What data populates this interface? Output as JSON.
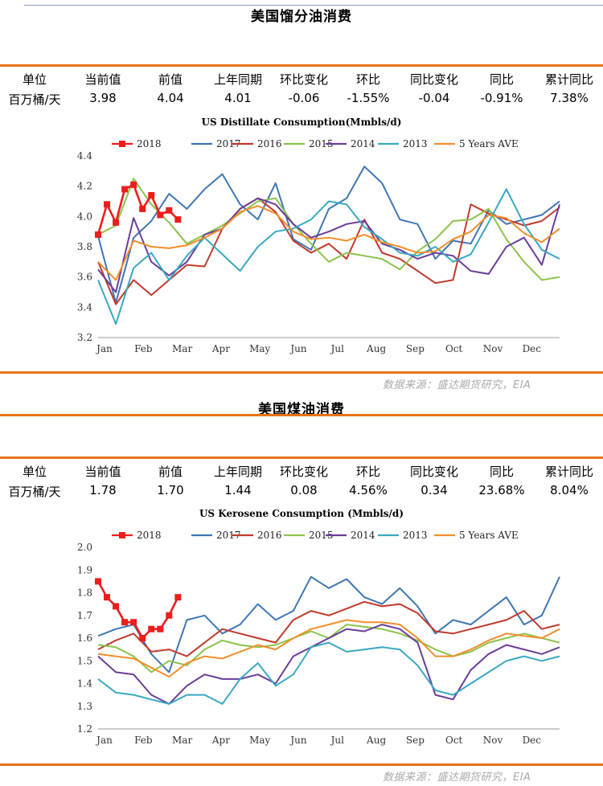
{
  "colors": {
    "accent": "#e8731a",
    "2018": "#ee1c1c",
    "2017": "#3f76b4",
    "2016": "#c0392b",
    "2015": "#8bc34a",
    "2014": "#6a3d9a",
    "2013": "#3aa8c1",
    "avg": "#f28e2b"
  },
  "table_headers": [
    "单位",
    "当前值",
    "前值",
    "上年同期",
    "环比变化",
    "环比",
    "同比变化",
    "同比",
    "累计同比"
  ],
  "sections": [
    {
      "title": "美国馏分油消费",
      "values": [
        "百万桶/天",
        "3.98",
        "4.04",
        "4.01",
        "-0.06",
        "-1.55%",
        "-0.04",
        "-0.91%",
        "7.38%"
      ],
      "source": "数据来源：盛达期货研究，EIA"
    },
    {
      "title": "美国煤油消费",
      "values": [
        "百万桶/天",
        "1.78",
        "1.70",
        "1.44",
        "0.08",
        "4.56%",
        "0.34",
        "23.68%",
        "8.04%"
      ],
      "source": "数据来源：盛达期货研究，EIA"
    }
  ],
  "chart_data": [
    {
      "type": "line",
      "title": "US Distillate Consumption(Mmbls/d)",
      "x_ticks": [
        "Jan",
        "Feb",
        "Mar",
        "Apr",
        "May",
        "Jun",
        "Jul",
        "Aug",
        "Sep",
        "Oct",
        "Nov",
        "Dec"
      ],
      "y_ticks": [
        3.2,
        3.4,
        3.6,
        3.8,
        4.0,
        4.2,
        4.4
      ],
      "ylim": [
        3.2,
        4.4
      ],
      "legend_position": "top",
      "series": [
        {
          "name": "2018",
          "key": "2018",
          "markers": true,
          "week": [
            1,
            2,
            3,
            4,
            5,
            6,
            7,
            8,
            9,
            10
          ],
          "values": [
            3.88,
            4.08,
            3.96,
            4.18,
            4.21,
            4.05,
            4.14,
            4.01,
            4.04,
            3.98
          ]
        },
        {
          "name": "2017",
          "key": "2017",
          "week": [
            1,
            3,
            5,
            7,
            9,
            11,
            13,
            15,
            17,
            19,
            21,
            23,
            25,
            27,
            29,
            31,
            33,
            35,
            37,
            39,
            41,
            43,
            45,
            47,
            49,
            51,
            53
          ],
          "values": [
            3.87,
            3.43,
            3.86,
            3.97,
            4.15,
            4.05,
            4.18,
            4.28,
            4.08,
            3.98,
            4.22,
            3.85,
            3.78,
            4.05,
            4.12,
            4.33,
            4.22,
            3.98,
            3.95,
            3.72,
            3.84,
            3.82,
            4.04,
            3.95,
            3.98,
            4.01,
            4.1
          ]
        },
        {
          "name": "2016",
          "key": "2016",
          "week": [
            1,
            3,
            5,
            7,
            9,
            11,
            13,
            15,
            17,
            19,
            21,
            23,
            25,
            27,
            29,
            31,
            33,
            35,
            37,
            39,
            41,
            43,
            45,
            47,
            49,
            51,
            53
          ],
          "values": [
            3.7,
            3.42,
            3.58,
            3.48,
            3.58,
            3.68,
            3.67,
            3.92,
            4.05,
            4.12,
            4.03,
            3.84,
            3.76,
            3.82,
            3.72,
            3.98,
            3.76,
            3.72,
            3.64,
            3.56,
            3.58,
            4.08,
            4.02,
            3.98,
            3.94,
            3.97,
            4.06
          ]
        },
        {
          "name": "2015",
          "key": "2015",
          "week": [
            1,
            3,
            5,
            7,
            9,
            11,
            13,
            15,
            17,
            19,
            21,
            23,
            25,
            27,
            29,
            31,
            33,
            35,
            37,
            39,
            41,
            43,
            45,
            47,
            49,
            51,
            53
          ],
          "values": [
            3.88,
            3.94,
            4.25,
            4.08,
            3.96,
            3.82,
            3.88,
            3.94,
            4.02,
            4.1,
            4.12,
            3.95,
            3.82,
            3.7,
            3.76,
            3.74,
            3.72,
            3.65,
            3.77,
            3.85,
            3.97,
            3.98,
            4.05,
            3.85,
            3.7,
            3.58,
            3.6
          ]
        },
        {
          "name": "2014",
          "key": "2014",
          "week": [
            1,
            3,
            5,
            7,
            9,
            11,
            13,
            15,
            17,
            19,
            21,
            23,
            25,
            27,
            29,
            31,
            33,
            35,
            37,
            39,
            41,
            43,
            45,
            47,
            49,
            51,
            53
          ],
          "values": [
            3.65,
            3.5,
            3.99,
            3.7,
            3.61,
            3.7,
            3.88,
            3.92,
            4.05,
            4.12,
            4.08,
            3.95,
            3.86,
            3.9,
            3.95,
            3.97,
            3.82,
            3.78,
            3.72,
            3.76,
            3.74,
            3.64,
            3.62,
            3.8,
            3.86,
            3.68,
            4.08
          ]
        },
        {
          "name": "2013",
          "key": "2013",
          "week": [
            1,
            3,
            5,
            7,
            9,
            11,
            13,
            15,
            17,
            19,
            21,
            23,
            25,
            27,
            29,
            31,
            33,
            35,
            37,
            39,
            41,
            43,
            45,
            47,
            49,
            51,
            53
          ],
          "values": [
            3.58,
            3.29,
            3.66,
            3.76,
            3.58,
            3.74,
            3.86,
            3.75,
            3.64,
            3.8,
            3.9,
            3.92,
            3.98,
            4.1,
            4.08,
            3.93,
            3.85,
            3.76,
            3.74,
            3.8,
            3.7,
            3.75,
            3.96,
            4.18,
            3.95,
            3.78,
            3.72
          ]
        },
        {
          "name": "5 Years AVE",
          "key": "avg",
          "week": [
            1,
            3,
            5,
            7,
            9,
            11,
            13,
            15,
            17,
            19,
            21,
            23,
            25,
            27,
            29,
            31,
            33,
            35,
            37,
            39,
            41,
            43,
            45,
            47,
            49,
            51,
            53
          ],
          "values": [
            3.7,
            3.58,
            3.84,
            3.8,
            3.79,
            3.81,
            3.86,
            3.92,
            4.03,
            4.07,
            4.02,
            3.9,
            3.85,
            3.86,
            3.84,
            3.88,
            3.83,
            3.8,
            3.76,
            3.77,
            3.85,
            3.9,
            4.01,
            3.99,
            3.89,
            3.83,
            3.92
          ]
        }
      ]
    },
    {
      "type": "line",
      "title": "US Kerosene Consumption (Mmbls/d)",
      "x_ticks": [
        "Jan",
        "Feb",
        "Mar",
        "Apr",
        "May",
        "Jun",
        "Jul",
        "Aug",
        "Sep",
        "Oct",
        "Nov",
        "Dec"
      ],
      "y_ticks": [
        1.2,
        1.3,
        1.4,
        1.5,
        1.6,
        1.7,
        1.8,
        1.9,
        2.0
      ],
      "ylim": [
        1.2,
        2.0
      ],
      "legend_position": "top",
      "series": [
        {
          "name": "2018",
          "key": "2018",
          "markers": true,
          "week": [
            1,
            2,
            3,
            4,
            5,
            6,
            7,
            8,
            9,
            10
          ],
          "values": [
            1.85,
            1.78,
            1.74,
            1.67,
            1.67,
            1.6,
            1.64,
            1.64,
            1.7,
            1.78
          ]
        },
        {
          "name": "2017",
          "key": "2017",
          "week": [
            1,
            3,
            5,
            7,
            9,
            11,
            13,
            15,
            17,
            19,
            21,
            23,
            25,
            27,
            29,
            31,
            33,
            35,
            37,
            39,
            41,
            43,
            45,
            47,
            49,
            51,
            53
          ],
          "values": [
            1.61,
            1.64,
            1.66,
            1.53,
            1.45,
            1.68,
            1.7,
            1.62,
            1.66,
            1.75,
            1.68,
            1.72,
            1.87,
            1.82,
            1.86,
            1.78,
            1.75,
            1.82,
            1.74,
            1.62,
            1.68,
            1.66,
            1.72,
            1.78,
            1.66,
            1.7,
            1.87
          ]
        },
        {
          "name": "2016",
          "key": "2016",
          "week": [
            1,
            3,
            5,
            7,
            9,
            11,
            13,
            15,
            17,
            19,
            21,
            23,
            25,
            27,
            29,
            31,
            33,
            35,
            37,
            39,
            41,
            43,
            45,
            47,
            49,
            51,
            53
          ],
          "values": [
            1.55,
            1.59,
            1.62,
            1.54,
            1.55,
            1.52,
            1.58,
            1.64,
            1.62,
            1.6,
            1.58,
            1.68,
            1.72,
            1.7,
            1.73,
            1.76,
            1.74,
            1.75,
            1.71,
            1.63,
            1.62,
            1.64,
            1.66,
            1.68,
            1.72,
            1.64,
            1.66
          ]
        },
        {
          "name": "2015",
          "key": "2015",
          "week": [
            1,
            3,
            5,
            7,
            9,
            11,
            13,
            15,
            17,
            19,
            21,
            23,
            25,
            27,
            29,
            31,
            33,
            35,
            37,
            39,
            41,
            43,
            45,
            47,
            49,
            51,
            53
          ],
          "values": [
            1.57,
            1.56,
            1.52,
            1.45,
            1.5,
            1.48,
            1.55,
            1.59,
            1.57,
            1.56,
            1.57,
            1.6,
            1.63,
            1.6,
            1.66,
            1.65,
            1.64,
            1.62,
            1.59,
            1.55,
            1.52,
            1.54,
            1.58,
            1.6,
            1.62,
            1.6,
            1.58
          ]
        },
        {
          "name": "2014",
          "key": "2014",
          "week": [
            1,
            3,
            5,
            7,
            9,
            11,
            13,
            15,
            17,
            19,
            21,
            23,
            25,
            27,
            29,
            31,
            33,
            35,
            37,
            39,
            41,
            43,
            45,
            47,
            49,
            51,
            53
          ],
          "values": [
            1.52,
            1.45,
            1.44,
            1.35,
            1.31,
            1.39,
            1.44,
            1.42,
            1.42,
            1.44,
            1.4,
            1.52,
            1.56,
            1.6,
            1.64,
            1.63,
            1.66,
            1.64,
            1.58,
            1.35,
            1.33,
            1.46,
            1.53,
            1.57,
            1.55,
            1.53,
            1.56
          ]
        },
        {
          "name": "2013",
          "key": "2013",
          "week": [
            1,
            3,
            5,
            7,
            9,
            11,
            13,
            15,
            17,
            19,
            21,
            23,
            25,
            27,
            29,
            31,
            33,
            35,
            37,
            39,
            41,
            43,
            45,
            47,
            49,
            51,
            53
          ],
          "values": [
            1.42,
            1.36,
            1.35,
            1.33,
            1.31,
            1.35,
            1.35,
            1.31,
            1.42,
            1.49,
            1.39,
            1.44,
            1.56,
            1.58,
            1.54,
            1.55,
            1.56,
            1.55,
            1.48,
            1.37,
            1.35,
            1.4,
            1.45,
            1.5,
            1.52,
            1.5,
            1.52
          ]
        },
        {
          "name": "5 Years AVE",
          "key": "avg",
          "week": [
            1,
            3,
            5,
            7,
            9,
            11,
            13,
            15,
            17,
            19,
            21,
            23,
            25,
            27,
            29,
            31,
            33,
            35,
            37,
            39,
            41,
            43,
            45,
            47,
            49,
            51,
            53
          ],
          "values": [
            1.53,
            1.52,
            1.51,
            1.47,
            1.43,
            1.49,
            1.52,
            1.51,
            1.54,
            1.57,
            1.55,
            1.6,
            1.64,
            1.66,
            1.68,
            1.67,
            1.67,
            1.66,
            1.6,
            1.52,
            1.52,
            1.55,
            1.59,
            1.62,
            1.61,
            1.6,
            1.64
          ]
        }
      ]
    }
  ]
}
